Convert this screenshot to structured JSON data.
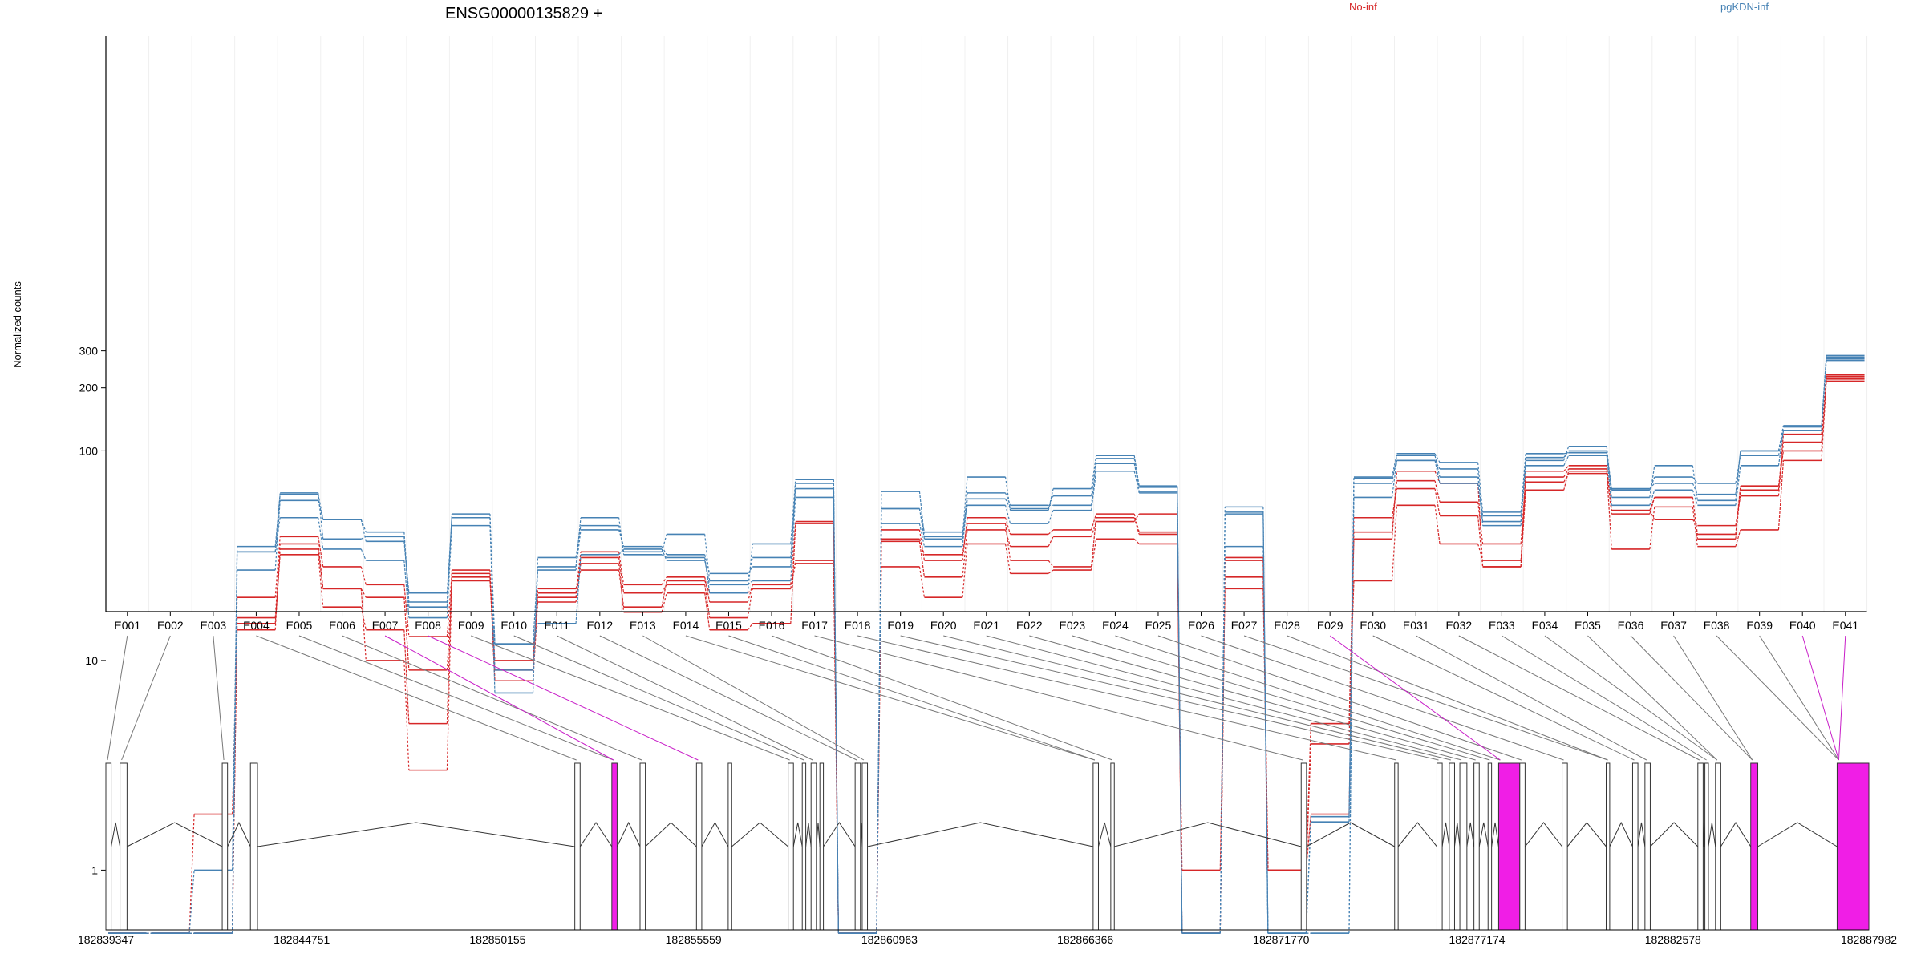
{
  "chart_data": {
    "type": "line",
    "title": "ENSG00000135829 +",
    "ylabel": "Normalized counts",
    "yscale": "log",
    "ylim": [
      0.48,
      380
    ],
    "yticks": [
      1,
      10,
      100,
      200,
      300
    ],
    "ytick_labels": [
      "1",
      "10",
      "100",
      "200",
      "300"
    ],
    "grid": false,
    "legend": [
      {
        "name": "No-inf",
        "color": "#d62728"
      },
      {
        "name": "pgKDN-inf",
        "color": "#4682b4"
      }
    ],
    "exons": [
      "E001",
      "E002",
      "E003",
      "E004",
      "E005",
      "E006",
      "E007",
      "E008",
      "E009",
      "E010",
      "E011",
      "E012",
      "E013",
      "E014",
      "E015",
      "E016",
      "E017",
      "E018",
      "E019",
      "E020",
      "E021",
      "E022",
      "E023",
      "E024",
      "E025",
      "E026",
      "E027",
      "E028",
      "E029",
      "E030",
      "E031",
      "E032",
      "E033",
      "E034",
      "E035",
      "E036",
      "E037",
      "E038",
      "E039",
      "E040",
      "E041"
    ],
    "series": [
      {
        "group": "No-inf",
        "values": [
          0.5,
          0.5,
          1.85,
          14,
          34,
          22,
          10,
          3,
          25,
          8,
          19,
          29,
          17,
          21,
          14,
          15,
          45,
          0.5,
          37,
          25,
          42,
          35,
          39,
          46,
          50,
          0.5,
          30,
          1,
          4,
          48,
          66,
          49,
          28,
          65,
          80,
          34,
          54,
          35,
          42,
          90,
          215
        ]
      },
      {
        "group": "No-inf",
        "values": [
          0.5,
          0.5,
          0.5,
          15,
          32,
          18,
          14,
          5,
          27,
          9,
          20,
          31,
          21,
          23,
          16,
          22,
          30,
          0.5,
          42,
          30,
          48,
          40,
          42,
          50,
          41,
          0.5,
          25,
          1,
          5,
          24,
          55,
          36,
          30,
          71,
          78,
          52,
          47,
          44,
          61,
          110,
          220
        ]
      },
      {
        "group": "No-inf",
        "values": [
          0.5,
          0.5,
          0.5,
          16,
          36,
          22,
          20,
          9,
          24,
          10,
          21,
          33,
          23,
          25,
          19,
          23,
          46,
          0.5,
          28,
          20,
          36,
          26,
          27,
          38,
          36,
          1,
          22,
          1,
          1.85,
          41,
          72,
          57,
          36,
          75,
          82,
          50,
          60,
          38,
          65,
          120,
          226
        ]
      },
      {
        "group": "No-inf",
        "values": [
          0.5,
          0.5,
          0.5,
          20,
          39,
          28,
          23,
          13,
          26,
          8,
          22,
          27,
          18,
          24,
          21,
          22,
          29,
          0.5,
          38,
          32,
          45,
          30,
          28,
          48,
          40,
          0.5,
          31,
          1,
          5,
          38,
          80,
          70,
          28,
          80,
          85,
          52,
          60,
          40,
          68,
          100,
          230
        ]
      },
      {
        "group": "pgKDN-inf",
        "values": [
          0.5,
          0.5,
          1,
          33,
          48,
          34,
          30,
          16,
          44,
          12,
          15,
          32,
          34,
          30,
          23,
          24,
          60,
          0.5,
          53,
          41,
          55,
          45,
          52,
          80,
          63,
          0.5,
          50,
          0.5,
          1.7,
          60,
          90,
          70,
          46,
          85,
          95,
          55,
          65,
          55,
          85,
          125,
          280
        ]
      },
      {
        "group": "pgKDN-inf",
        "values": [
          0.5,
          0.5,
          0.5,
          27,
          58,
          47,
          37,
          21,
          48,
          9,
          27,
          42,
          35,
          32,
          26,
          28,
          70,
          0.5,
          53,
          38,
          63,
          55,
          55,
          87,
          67,
          0.5,
          35,
          0.5,
          0.5,
          70,
          95,
          75,
          49,
          93,
          100,
          66,
          70,
          62,
          100,
          130,
          270
        ]
      },
      {
        "group": "pgKDN-inf",
        "values": [
          0.5,
          0.5,
          0.5,
          35,
          62,
          47,
          41,
          19,
          48,
          7,
          31,
          44,
          33,
          40,
          24,
          31,
          66,
          0.5,
          45,
          35,
          59,
          53,
          61,
          92,
          64,
          0.5,
          54,
          0.5,
          0.5,
          75,
          97,
          88,
          51,
          97,
          98,
          65,
          75,
          70,
          95,
          125,
          275
        ]
      },
      {
        "group": "pgKDN-inf",
        "values": [
          0.5,
          0.5,
          0.5,
          33,
          63,
          38,
          39,
          18,
          50,
          12,
          28,
          48,
          32,
          31,
          21,
          36,
          73,
          0.5,
          64,
          39,
          75,
          52,
          66,
          95,
          68,
          0.5,
          51,
          0.5,
          1.8,
          74,
          90,
          82,
          44,
          90,
          105,
          60,
          85,
          58,
          100,
          132,
          285
        ]
      }
    ],
    "gene_axis_ticks": [
      "182839347",
      "182844751",
      "182850155",
      "182855559",
      "182860963",
      "182866366",
      "182871770",
      "182877174",
      "182882578",
      "182887982"
    ]
  }
}
